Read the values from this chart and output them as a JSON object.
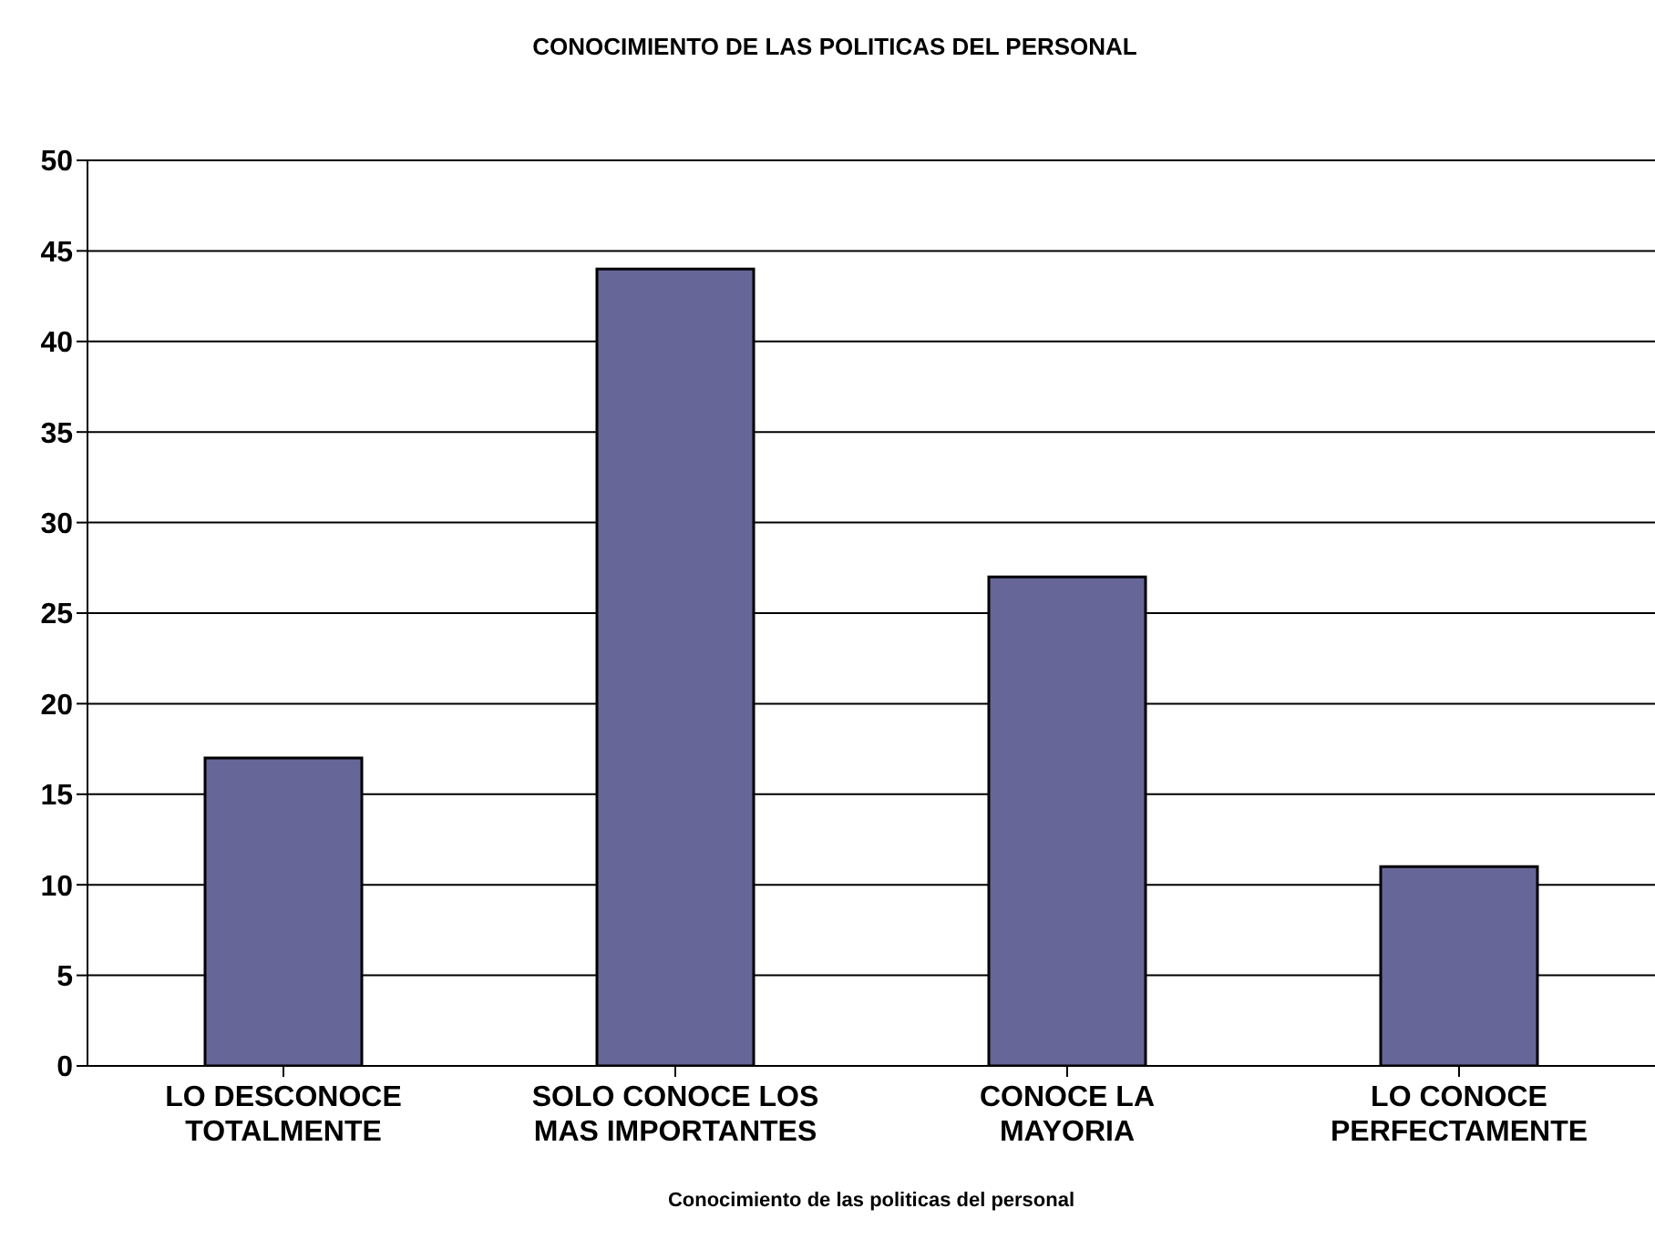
{
  "chart_data": {
    "type": "bar",
    "title": "CONOCIMIENTO DE LAS POLITICAS DEL PERSONAL",
    "xlabel": "Conocimiento de las politicas del personal",
    "categories": [
      "LO DESCONOCE TOTALMENTE",
      "SOLO CONOCE LOS MAS IMPORTANTES",
      "CONOCE LA MAYORIA",
      "LO CONOCE PERFECTAMENTE"
    ],
    "values": [
      17,
      44,
      27,
      11
    ],
    "color": "#666699",
    "ylim": [
      0,
      50
    ],
    "yticks": [
      0,
      5,
      10,
      15,
      20,
      25,
      30,
      35,
      40,
      45,
      50
    ],
    "grid": "y"
  }
}
